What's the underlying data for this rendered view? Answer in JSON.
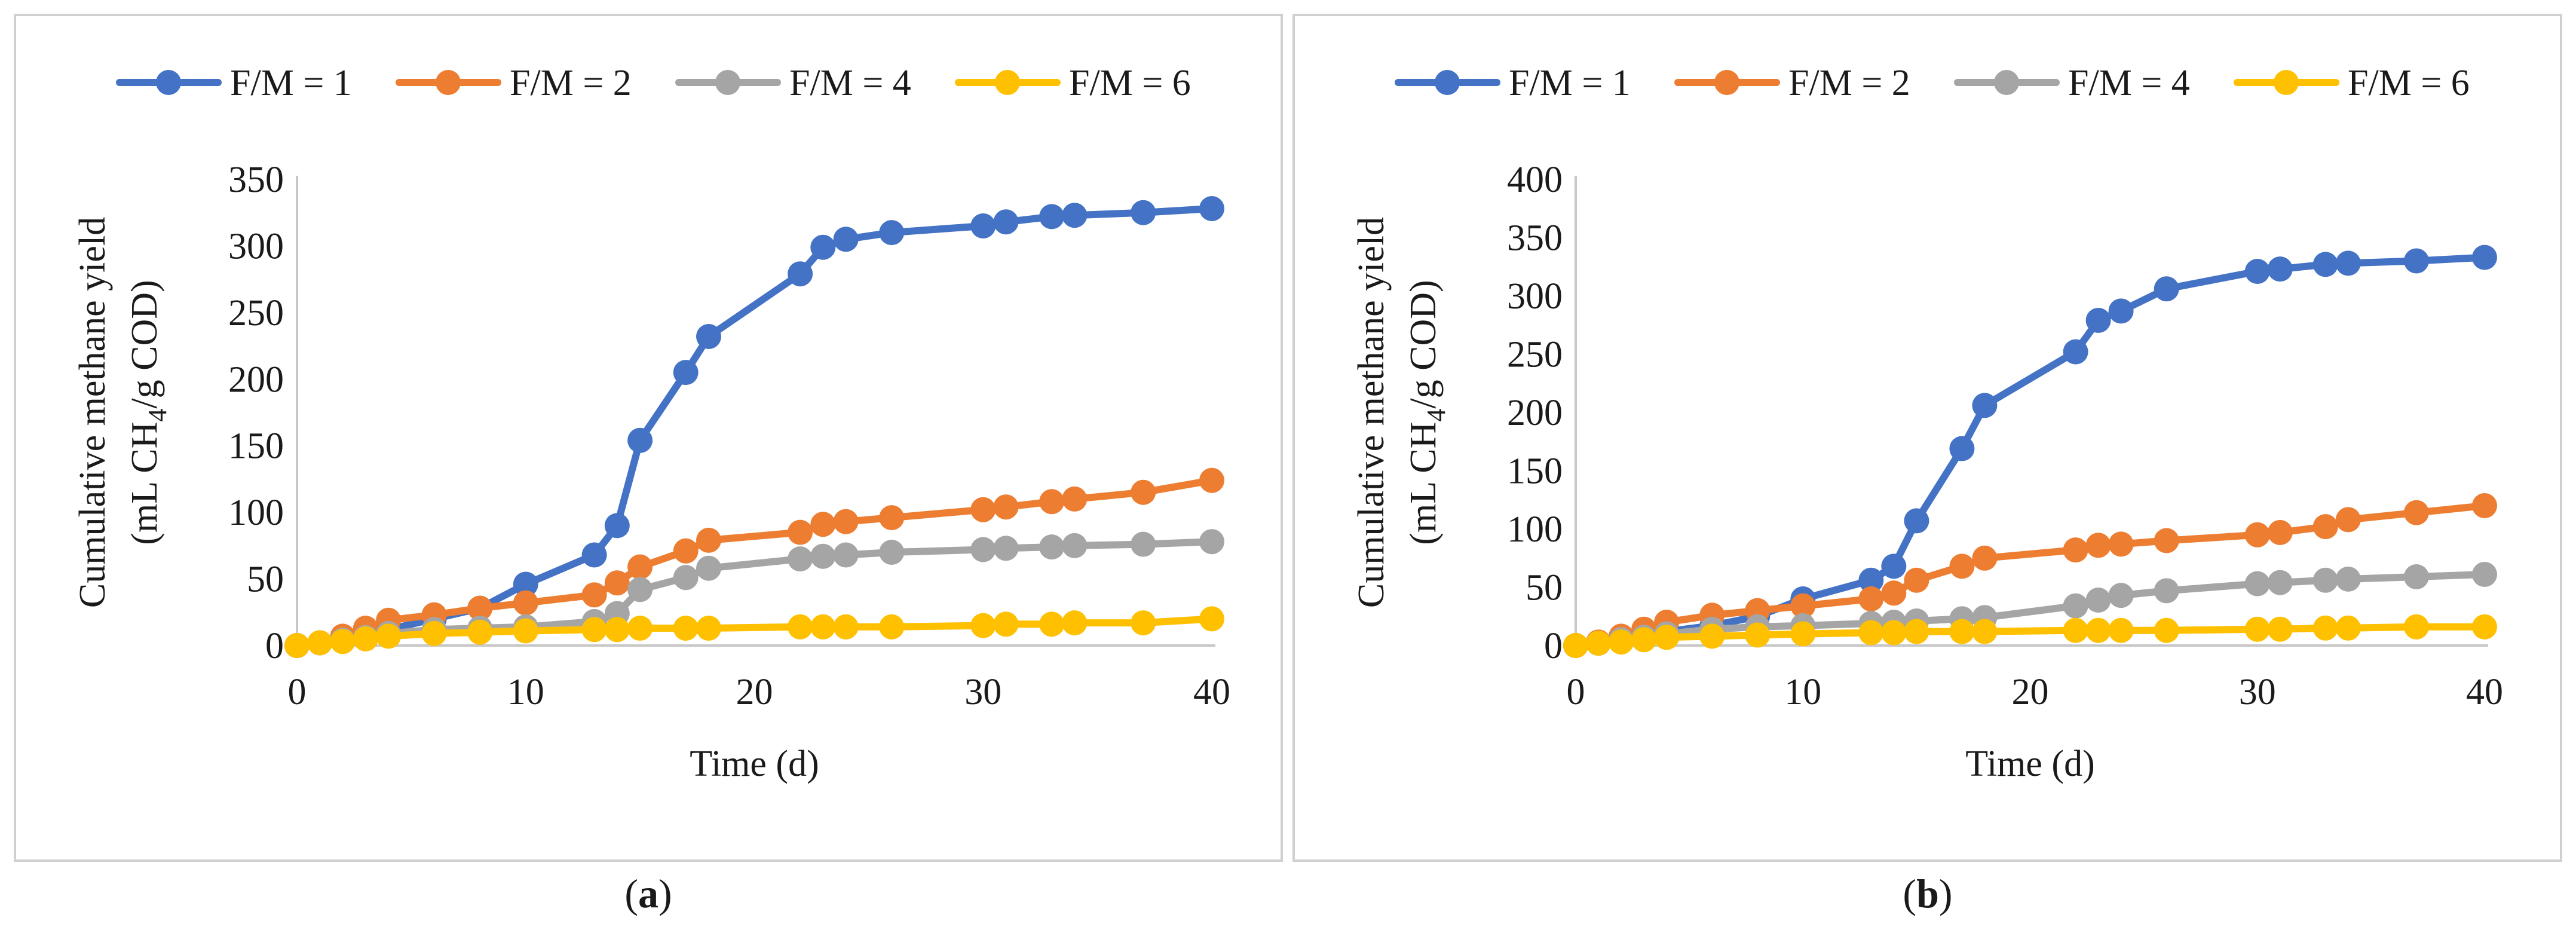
{
  "colors": {
    "fm1": "#4472C4",
    "fm2": "#ED7D31",
    "fm4": "#A5A5A5",
    "fm6": "#FFC000"
  },
  "chart_data": [
    {
      "type": "line",
      "caption": {
        "open": "(",
        "letter": "a",
        "close": ")"
      },
      "xlabel": "Time (d)",
      "ylabel_line1": "Cumulative methane yield",
      "ylabel_line2": {
        "pre": "(mL CH",
        "sub": "4",
        "post": "/g COD)"
      },
      "xlim": [
        0,
        40
      ],
      "ylim": [
        0,
        350
      ],
      "xticks": [
        "0",
        "10",
        "20",
        "30",
        "40"
      ],
      "yticks": [
        "0",
        "50",
        "100",
        "150",
        "200",
        "250",
        "300",
        "350"
      ],
      "legend_position": "top",
      "series": [
        {
          "name": "F/M = 1",
          "color": "#4472C4",
          "x": [
            0,
            1,
            2,
            3,
            4,
            6,
            8,
            10,
            13,
            14,
            15,
            17,
            18,
            22,
            23,
            24,
            26,
            30,
            31,
            33,
            34,
            37,
            40
          ],
          "y": [
            0,
            2,
            5,
            8,
            12,
            20,
            28,
            46,
            68,
            90,
            154,
            205,
            232,
            279,
            299,
            305,
            310,
            315,
            318,
            322,
            323,
            325,
            328
          ]
        },
        {
          "name": "F/M = 2",
          "color": "#ED7D31",
          "x": [
            0,
            1,
            2,
            3,
            4,
            6,
            8,
            10,
            13,
            14,
            15,
            17,
            18,
            22,
            23,
            24,
            26,
            30,
            31,
            33,
            34,
            37,
            40
          ],
          "y": [
            0,
            2,
            7,
            13,
            19,
            23,
            28,
            32,
            38,
            47,
            59,
            71,
            79,
            85,
            91,
            93,
            96,
            102,
            104,
            108,
            110,
            115,
            124
          ]
        },
        {
          "name": "F/M = 4",
          "color": "#A5A5A5",
          "x": [
            0,
            1,
            2,
            3,
            4,
            6,
            8,
            10,
            13,
            14,
            15,
            17,
            18,
            22,
            23,
            24,
            26,
            30,
            31,
            33,
            34,
            37,
            40
          ],
          "y": [
            0,
            2,
            4,
            6,
            9,
            12,
            13,
            14,
            18,
            24,
            42,
            51,
            58,
            65,
            67,
            68,
            70,
            72,
            73,
            74,
            75,
            76,
            78
          ]
        },
        {
          "name": "F/M = 6",
          "color": "#FFC000",
          "x": [
            0,
            1,
            2,
            3,
            4,
            6,
            8,
            10,
            13,
            14,
            15,
            17,
            18,
            22,
            23,
            24,
            26,
            30,
            31,
            33,
            34,
            37,
            40
          ],
          "y": [
            0,
            2,
            3,
            5,
            7,
            9,
            10,
            11,
            12,
            12,
            13,
            13,
            13,
            14,
            14,
            14,
            14,
            15,
            16,
            16,
            17,
            17,
            20
          ]
        }
      ]
    },
    {
      "type": "line",
      "caption": {
        "open": "(",
        "letter": "b",
        "close": ")"
      },
      "xlabel": "Time (d)",
      "ylabel_line1": "Cumulative methane yield",
      "ylabel_line2": {
        "pre": "(mL CH",
        "sub": "4",
        "post": "/g COD)"
      },
      "xlim": [
        0,
        40
      ],
      "ylim": [
        0,
        400
      ],
      "xticks": [
        "0",
        "10",
        "20",
        "30",
        "40"
      ],
      "yticks": [
        "0",
        "50",
        "100",
        "150",
        "200",
        "250",
        "300",
        "350",
        "400"
      ],
      "legend_position": "top",
      "series": [
        {
          "name": "F/M = 1",
          "color": "#4472C4",
          "x": [
            0,
            1,
            2,
            3,
            4,
            6,
            8,
            10,
            13,
            14,
            15,
            17,
            18,
            22,
            23,
            24,
            26,
            30,
            31,
            33,
            34,
            37,
            40
          ],
          "y": [
            0,
            2,
            5,
            8,
            12,
            17,
            25,
            40,
            56,
            68,
            107,
            169,
            206,
            252,
            279,
            287,
            306,
            321,
            323,
            327,
            328,
            330,
            333
          ]
        },
        {
          "name": "F/M = 2",
          "color": "#ED7D31",
          "x": [
            0,
            1,
            2,
            3,
            4,
            6,
            8,
            10,
            13,
            14,
            15,
            17,
            18,
            22,
            23,
            24,
            26,
            30,
            31,
            33,
            34,
            37,
            40
          ],
          "y": [
            0,
            3,
            8,
            14,
            20,
            26,
            30,
            34,
            40,
            45,
            56,
            68,
            75,
            82,
            86,
            87,
            90,
            95,
            97,
            102,
            108,
            114,
            120
          ]
        },
        {
          "name": "F/M = 4",
          "color": "#A5A5A5",
          "x": [
            0,
            1,
            2,
            3,
            4,
            6,
            8,
            10,
            13,
            14,
            15,
            17,
            18,
            22,
            23,
            24,
            26,
            30,
            31,
            33,
            34,
            37,
            40
          ],
          "y": [
            0,
            2,
            5,
            7,
            10,
            14,
            16,
            17,
            19,
            20,
            21,
            23,
            24,
            34,
            39,
            43,
            47,
            53,
            54,
            56,
            57,
            59,
            61
          ]
        },
        {
          "name": "F/M = 6",
          "color": "#FFC000",
          "x": [
            0,
            1,
            2,
            3,
            4,
            6,
            8,
            10,
            13,
            14,
            15,
            17,
            18,
            22,
            23,
            24,
            26,
            30,
            31,
            33,
            34,
            37,
            40
          ],
          "y": [
            0,
            2,
            3,
            5,
            7,
            8,
            9,
            10,
            11,
            11,
            12,
            12,
            12,
            13,
            13,
            13,
            13,
            14,
            14,
            15,
            15,
            16,
            16
          ]
        }
      ]
    }
  ]
}
